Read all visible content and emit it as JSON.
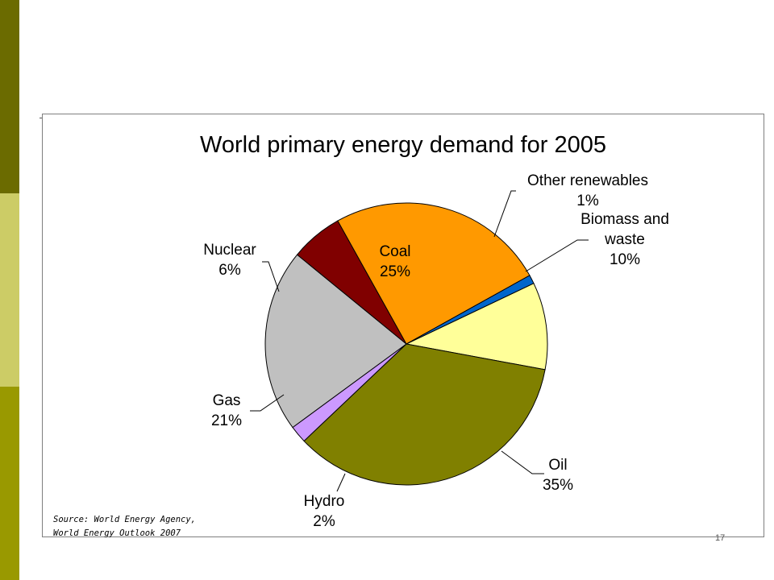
{
  "slide": {
    "page_number": "17",
    "sidebar_colors": [
      "#6b6b00",
      "#cccc66",
      "#999900"
    ]
  },
  "source": {
    "line1": "Source: World Energy Agency,",
    "line2": "World Energy Outlook 2007"
  },
  "chart_data": {
    "type": "pie",
    "title": "World primary energy demand for 2005",
    "start": "Biomass and waste",
    "slices": [
      {
        "name": "Biomass and waste",
        "label_lines": [
          "Biomass and",
          "waste"
        ],
        "pct_label": "10%",
        "value": 10,
        "color": "#ffff99"
      },
      {
        "name": "Oil",
        "label_lines": [
          "Oil"
        ],
        "pct_label": "35%",
        "value": 35,
        "color": "#808000"
      },
      {
        "name": "Hydro",
        "label_lines": [
          "Hydro"
        ],
        "pct_label": "2%",
        "value": 2,
        "color": "#cc99ff"
      },
      {
        "name": "Gas",
        "label_lines": [
          "Gas"
        ],
        "pct_label": "21%",
        "value": 21,
        "color": "#c0c0c0"
      },
      {
        "name": "Nuclear",
        "label_lines": [
          "Nuclear"
        ],
        "pct_label": "6%",
        "value": 6,
        "color": "#800000"
      },
      {
        "name": "Coal",
        "label_lines": [
          "Coal"
        ],
        "pct_label": "25%",
        "value": 25,
        "color": "#ff9900"
      },
      {
        "name": "Other renewables",
        "label_lines": [
          "Other renewables"
        ],
        "pct_label": "1%",
        "value": 1,
        "color": "#0066cc"
      }
    ]
  }
}
